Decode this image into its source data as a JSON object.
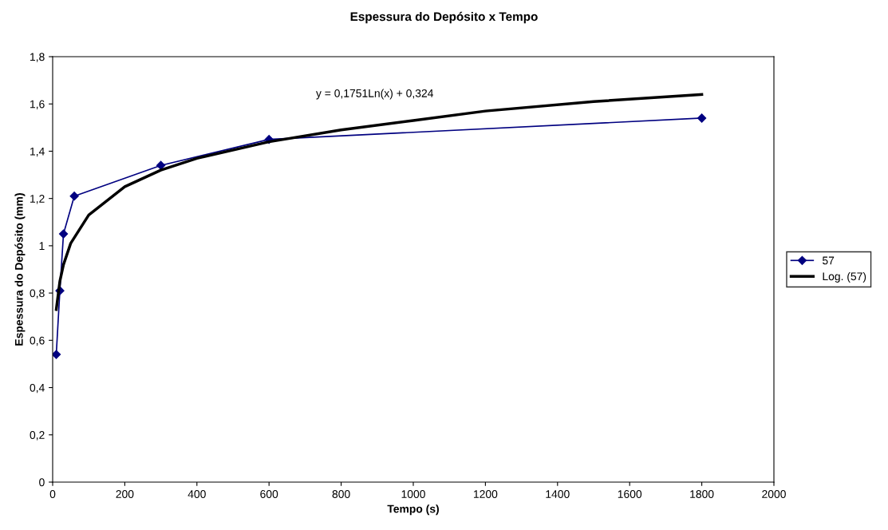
{
  "chart_data": {
    "type": "line",
    "title": "Espessura do Depósito x Tempo",
    "xlabel": "Tempo (s)",
    "ylabel": "Espessura do Depósito (mm)",
    "xlim": [
      0,
      2000
    ],
    "xticks": [
      0,
      200,
      400,
      600,
      800,
      1000,
      1200,
      1400,
      1600,
      1800,
      2000
    ],
    "ylim": [
      0,
      1.8
    ],
    "yticks": [
      0,
      {
        "value": 0.2,
        "label": "0,2"
      },
      {
        "value": 0.4,
        "label": "0,4"
      },
      {
        "value": 0.6,
        "label": "0,6"
      },
      {
        "value": 0.8,
        "label": "0,8"
      },
      1,
      {
        "value": 1.2,
        "label": "1,2"
      },
      {
        "value": 1.4,
        "label": "1,4"
      },
      {
        "value": 1.6,
        "label": "1,6"
      },
      {
        "value": 1.8,
        "label": "1,8"
      }
    ],
    "grid": false,
    "legend": "right",
    "annotations": [
      "y = 0,1751Ln(x) + 0,324"
    ],
    "series": [
      {
        "name": "57",
        "color": "#000080",
        "marker": "diamond",
        "x": [
          10,
          20,
          30,
          60,
          300,
          600,
          1800
        ],
        "values": [
          0.54,
          0.81,
          1.05,
          1.21,
          1.34,
          1.45,
          1.54
        ]
      },
      {
        "name": "Log. (57)",
        "color": "#000000",
        "marker": "none",
        "x": [
          10,
          20,
          30,
          50,
          100,
          200,
          300,
          400,
          600,
          800,
          1000,
          1200,
          1500,
          1800
        ],
        "values": [
          0.73,
          0.85,
          0.92,
          1.01,
          1.13,
          1.25,
          1.32,
          1.37,
          1.44,
          1.49,
          1.53,
          1.57,
          1.61,
          1.64
        ]
      }
    ]
  }
}
